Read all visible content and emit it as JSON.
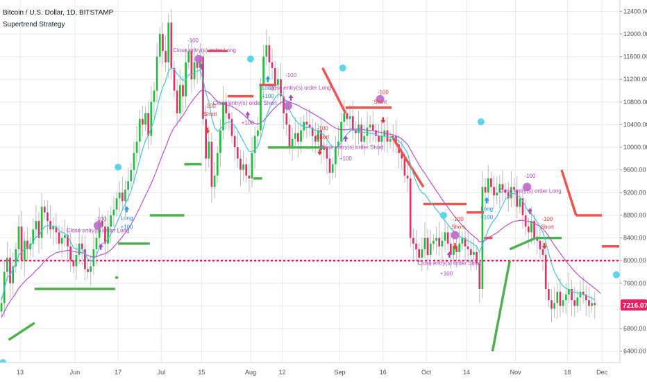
{
  "header": {
    "title": "Bitcoin / U.S. Dollar, 1D, BITSTAMP",
    "subtitle": "Supertrend Strategy"
  },
  "price_tag": {
    "value": "7216.07",
    "color": "#e91e63"
  },
  "colors": {
    "up": "#1fbe3d",
    "down": "#e0316b",
    "supertrend_up": "#4caf50",
    "supertrend_down": "#ef5350",
    "ma_fast": "#45c3d8",
    "ma_slow": "#b453c8",
    "baseline": "#d81b60",
    "grid": "#e8e8e8",
    "marker_cyan": "#4dd0e1",
    "marker_purple": "#ba68c8",
    "long_arrow": "#2196f3",
    "short_arrow": "#e53935",
    "ann_purple": "#ab47bc",
    "ann_red": "#e53935",
    "ann_blue": "#1e88e5"
  },
  "chart_data": {
    "type": "line",
    "title": "Bitcoin / U.S. Dollar, 1D, BITSTAMP",
    "subtitle": "Supertrend Strategy",
    "ylim": [
      6200,
      12600
    ],
    "yticks": [
      "12400.00",
      "12000.00",
      "11600.00",
      "11200.00",
      "10800.00",
      "10400.00",
      "10000.00",
      "9600.00",
      "9200.00",
      "8800.00",
      "8400.00",
      "8000.00",
      "7600.00",
      "7200.00",
      "6800.00",
      "6400.00"
    ],
    "ytick_values": [
      12400,
      12000,
      11600,
      11200,
      10800,
      10400,
      10000,
      9600,
      9200,
      8800,
      8400,
      8000,
      7600,
      7200,
      6800,
      6400
    ],
    "xlim": [
      0,
      215
    ],
    "xticks": [
      {
        "label": "13",
        "x": 7
      },
      {
        "label": "Jun",
        "x": 26
      },
      {
        "label": "17",
        "x": 41
      },
      {
        "label": "Jul",
        "x": 56
      },
      {
        "label": "15",
        "x": 70
      },
      {
        "label": "Aug",
        "x": 87
      },
      {
        "label": "12",
        "x": 98
      },
      {
        "label": "Sep",
        "x": 118
      },
      {
        "label": "16",
        "x": 133
      },
      {
        "label": "Oct",
        "x": 148
      },
      {
        "label": "14",
        "x": 162
      },
      {
        "label": "Nov",
        "x": 179
      },
      {
        "label": "18",
        "x": 197
      },
      {
        "label": "Dec",
        "x": 209
      }
    ],
    "baseline_value": 8000,
    "close": [
      7250,
      7800,
      8050,
      7600,
      7900,
      8200,
      8600,
      8000,
      8350,
      8200,
      8300,
      8550,
      8700,
      8400,
      8950,
      8850,
      8700,
      8550,
      8600,
      8500,
      8300,
      8400,
      8450,
      8250,
      8000,
      7900,
      8100,
      8300,
      8200,
      7850,
      7800,
      7900,
      8200,
      8400,
      8700,
      8600,
      8300,
      8600,
      8800,
      8900,
      9100,
      9200,
      9050,
      9250,
      9400,
      9600,
      9900,
      10100,
      10500,
      10400,
      10600,
      10200,
      10800,
      11000,
      11600,
      12000,
      11700,
      11500,
      12200,
      11400,
      11000,
      10600,
      11100,
      10900,
      11500,
      11700,
      11200,
      11500,
      11400,
      11600,
      10500,
      9800,
      10100,
      9300,
      9500,
      9900,
      10300,
      10800,
      10600,
      10500,
      10200,
      10000,
      9800,
      9600,
      9700,
      9500,
      9450,
      9900,
      10200,
      10300,
      11100,
      11600,
      11800,
      11500,
      11400,
      11100,
      11200,
      10900,
      10600,
      10400,
      10000,
      10150,
      10250,
      10100,
      10300,
      10450,
      10400,
      10350,
      10200,
      10100,
      10300,
      9950,
      10000,
      9800,
      9550,
      9700,
      10000,
      10100,
      10450,
      10600,
      10500,
      10550,
      10300,
      10250,
      10400,
      10100,
      10200,
      10350,
      10400,
      10300,
      10200,
      10100,
      10200,
      10300,
      10100,
      10150,
      10200,
      10050,
      9900,
      9800,
      9500,
      9450,
      8400,
      8300,
      8200,
      8050,
      8200,
      8400,
      8100,
      8300,
      8350,
      8400,
      8250,
      8350,
      8500,
      8300,
      8100,
      8250,
      8150,
      8300,
      8400,
      8250,
      8200,
      8100,
      8150,
      7950,
      7500,
      9300,
      9200,
      9450,
      9300,
      9150,
      9200,
      9350,
      9250,
      9200,
      9100,
      9300,
      9250,
      8950,
      9100,
      8800,
      8600,
      8500,
      8700,
      8400,
      8350,
      8200,
      8100,
      7500,
      7300,
      7150,
      7250,
      7450,
      7200,
      7300,
      7400,
      7500,
      7300,
      7200,
      7350,
      7450,
      7400,
      7300,
      7200,
      7250,
      7216
    ],
    "ma_fast": [
      7300,
      7500,
      7700,
      7750,
      7850,
      7950,
      8100,
      8150,
      8200,
      8220,
      8250,
      8330,
      8420,
      8430,
      8530,
      8600,
      8620,
      8610,
      8610,
      8590,
      8530,
      8500,
      8480,
      8430,
      8330,
      8230,
      8200,
      8210,
      8210,
      8120,
      8030,
      7990,
      8020,
      8100,
      8230,
      8300,
      8320,
      8380,
      8470,
      8550,
      8660,
      8780,
      8890,
      9000,
      9100,
      9230,
      9400,
      9580,
      9780,
      9960,
      10120,
      10210,
      10340,
      10480,
      10680,
      10900,
      11060,
      11170,
      11350,
      11400,
      11380,
      11290,
      11240,
      11180,
      11200,
      11280,
      11280,
      11320,
      11340,
      11370,
      11200,
      10960,
      10800,
      10530,
      10350,
      10280,
      10330,
      10380,
      10430,
      10450,
      10430,
      10380,
      10300,
      10200,
      10110,
      10010,
      9930,
      9920,
      9960,
      10010,
      10160,
      10350,
      10550,
      10680,
      10790,
      10870,
      10930,
      10950,
      10890,
      10800,
      10660,
      10560,
      10490,
      10430,
      10390,
      10360,
      10350,
      10350,
      10330,
      10300,
      10300,
      10250,
      10220,
      10150,
      10060,
      10010,
      10010,
      10020,
      10080,
      10170,
      10230,
      10290,
      10300,
      10300,
      10310,
      10280,
      10260,
      10250,
      10250,
      10240,
      10230,
      10200,
      10200,
      10190,
      10180,
      10180,
      10170,
      10150,
      10110,
      10060,
      9980,
      9900,
      9700,
      9530,
      9390,
      9270,
      9200,
      9170,
      9100,
      9020,
      8970,
      8900,
      8840,
      8770,
      8700,
      8640,
      8570,
      8520,
      8470,
      8430,
      8400,
      8380,
      8350,
      8320,
      8290,
      8250,
      8150,
      8280,
      8400,
      8540,
      8640,
      8710,
      8780,
      8880,
      8980,
      9080,
      9130,
      9170,
      9190,
      9150,
      9120,
      9050,
      8960,
      8860,
      8830,
      8760,
      8680,
      8590,
      8500,
      8320,
      8130,
      7950,
      7800,
      7710,
      7620,
      7550,
      7510,
      7490,
      7460,
      7440,
      7430,
      7420,
      7400,
      7380,
      7360,
      7340,
      7300
    ],
    "ma_slow": [
      7000,
      7100,
      7200,
      7280,
      7350,
      7430,
      7510,
      7570,
      7630,
      7680,
      7720,
      7770,
      7830,
      7870,
      7930,
      7990,
      8040,
      8080,
      8110,
      8140,
      8150,
      8160,
      8170,
      8180,
      8180,
      8160,
      8150,
      8150,
      8140,
      8120,
      8090,
      8070,
      8060,
      8070,
      8090,
      8110,
      8120,
      8150,
      8190,
      8240,
      8300,
      8360,
      8420,
      8490,
      8560,
      8640,
      8730,
      8830,
      8930,
      9040,
      9150,
      9250,
      9360,
      9480,
      9610,
      9750,
      9880,
      10000,
      10140,
      10260,
      10350,
      10420,
      10490,
      10560,
      10640,
      10730,
      10800,
      10870,
      10930,
      10990,
      11010,
      10990,
      10970,
      10920,
      10860,
      10810,
      10780,
      10760,
      10750,
      10740,
      10720,
      10690,
      10660,
      10620,
      10580,
      10530,
      10480,
      10440,
      10420,
      10410,
      10430,
      10470,
      10530,
      10590,
      10650,
      10700,
      10750,
      10790,
      10810,
      10820,
      10800,
      10780,
      10760,
      10740,
      10710,
      10680,
      10660,
      10630,
      10600,
      10570,
      10540,
      10510,
      10480,
      10440,
      10400,
      10370,
      10340,
      10320,
      10310,
      10310,
      10310,
      10320,
      10320,
      10320,
      10320,
      10320,
      10310,
      10300,
      10300,
      10290,
      10280,
      10270,
      10260,
      10250,
      10240,
      10230,
      10220,
      10200,
      10180,
      10150,
      10100,
      10050,
      9960,
      9870,
      9780,
      9690,
      9610,
      9540,
      9460,
      9380,
      9310,
      9230,
      9160,
      9080,
      9010,
      8940,
      8870,
      8800,
      8740,
      8680,
      8620,
      8570,
      8520,
      8470,
      8430,
      8390,
      8330,
      8340,
      8360,
      8400,
      8430,
      8460,
      8490,
      8530,
      8570,
      8610,
      8640,
      8670,
      8690,
      8700,
      8710,
      8710,
      8700,
      8690,
      8680,
      8660,
      8630,
      8600,
      8560,
      8500,
      8430,
      8350,
      8270,
      8200,
      8130,
      8060,
      7990,
      7930,
      7870,
      7810,
      7760,
      7710,
      7670,
      7630,
      7590,
      7550,
      7510,
      7470,
      7420
    ],
    "supertrend": [
      {
        "x": [
          3,
          12
        ],
        "y": [
          6600,
          6900
        ],
        "dir": "up"
      },
      {
        "x": [
          12,
          40
        ],
        "y": [
          7500,
          7500
        ],
        "dir": "up"
      },
      {
        "x": [
          40,
          41
        ],
        "y": [
          7700,
          7700
        ],
        "dir": "up"
      },
      {
        "x": [
          41,
          52
        ],
        "y": [
          8300,
          8300
        ],
        "dir": "up"
      },
      {
        "x": [
          52,
          64
        ],
        "y": [
          8800,
          8800
        ],
        "dir": "up"
      },
      {
        "x": [
          64,
          70
        ],
        "y": [
          9700,
          9700
        ],
        "dir": "up"
      },
      {
        "x": [
          72,
          79
        ],
        "y": [
          11700,
          11700
        ],
        "dir": "down"
      },
      {
        "x": [
          79,
          88
        ],
        "y": [
          10900,
          10900
        ],
        "dir": "down"
      },
      {
        "x": [
          90,
          96
        ],
        "y": [
          11100,
          11100
        ],
        "dir": "down"
      },
      {
        "x": [
          88,
          91
        ],
        "y": [
          9450,
          9450
        ],
        "dir": "up"
      },
      {
        "x": [
          93,
          113
        ],
        "y": [
          10000,
          10000
        ],
        "dir": "up"
      },
      {
        "x": [
          112,
          120
        ],
        "y": [
          11400,
          10600
        ],
        "dir": "down"
      },
      {
        "x": [
          120,
          136
        ],
        "y": [
          10700,
          10700
        ],
        "dir": "down"
      },
      {
        "x": [
          136,
          147
        ],
        "y": [
          10200,
          9300
        ],
        "dir": "down"
      },
      {
        "x": [
          147,
          162
        ],
        "y": [
          9000,
          9000
        ],
        "dir": "down"
      },
      {
        "x": [
          162,
          168
        ],
        "y": [
          8850,
          8850
        ],
        "dir": "down"
      },
      {
        "x": [
          168,
          171
        ],
        "y": [
          8400,
          8400
        ],
        "dir": "down"
      },
      {
        "x": [
          171,
          177
        ],
        "y": [
          6400,
          8000
        ],
        "dir": "up"
      },
      {
        "x": [
          177,
          186
        ],
        "y": [
          8200,
          8400
        ],
        "dir": "up"
      },
      {
        "x": [
          186,
          195
        ],
        "y": [
          8400,
          8400
        ],
        "dir": "up"
      },
      {
        "x": [
          195,
          200
        ],
        "y": [
          9600,
          8800
        ],
        "dir": "down"
      },
      {
        "x": [
          200,
          209
        ],
        "y": [
          8800,
          8800
        ],
        "dir": "down"
      },
      {
        "x": [
          209,
          215
        ],
        "y": [
          8250,
          8250
        ],
        "dir": "down"
      }
    ],
    "annotations": [
      {
        "text": "-100",
        "x": 35,
        "y": 8700,
        "color": "ann_purple"
      },
      {
        "text": "Close entry(s) order Long",
        "x": 34,
        "y": 8500,
        "color": "ann_purple"
      },
      {
        "text": "Long",
        "x": 44,
        "y": 8720,
        "color": "ann_blue"
      },
      {
        "text": "+100",
        "x": 44,
        "y": 8560,
        "color": "ann_blue"
      },
      {
        "text": "-100",
        "x": 67,
        "y": 11850,
        "color": "ann_purple"
      },
      {
        "text": "Close entry(s) order Long",
        "x": 71,
        "y": 11680,
        "color": "ann_purple"
      },
      {
        "text": "-100",
        "x": 73,
        "y": 10700,
        "color": "ann_red"
      },
      {
        "text": "Short",
        "x": 73,
        "y": 10550,
        "color": "ann_red"
      },
      {
        "text": "Close entry(s) order Short",
        "x": 85,
        "y": 10750,
        "color": "ann_purple"
      },
      {
        "text": "+100",
        "x": 86,
        "y": 10400,
        "color": "ann_purple"
      },
      {
        "text": "Long",
        "x": 93,
        "y": 11020,
        "color": "ann_blue"
      },
      {
        "text": "+100",
        "x": 93,
        "y": 10870,
        "color": "ann_blue"
      },
      {
        "text": "-100",
        "x": 101,
        "y": 11240,
        "color": "ann_purple"
      },
      {
        "text": "Close entry(s) order Long",
        "x": 104,
        "y": 11020,
        "color": "ann_purple"
      },
      {
        "text": "-100",
        "x": 112,
        "y": 10300,
        "color": "ann_red"
      },
      {
        "text": "Short",
        "x": 112,
        "y": 10150,
        "color": "ann_red"
      },
      {
        "text": "Close entry(s) order Short",
        "x": 122,
        "y": 9970,
        "color": "ann_purple"
      },
      {
        "text": "+100",
        "x": 120,
        "y": 9770,
        "color": "ann_purple"
      },
      {
        "text": "-100",
        "x": 133,
        "y": 10940,
        "color": "ann_red"
      },
      {
        "text": "Short",
        "x": 132,
        "y": 10770,
        "color": "ann_red"
      },
      {
        "text": "-100",
        "x": 159,
        "y": 8700,
        "color": "ann_red"
      },
      {
        "text": "Short",
        "x": 159,
        "y": 8560,
        "color": "ann_red"
      },
      {
        "text": "Close entry(s) order Short",
        "x": 156,
        "y": 7920,
        "color": "ann_purple"
      },
      {
        "text": "+100",
        "x": 155,
        "y": 7740,
        "color": "ann_purple"
      },
      {
        "text": "Long",
        "x": 169,
        "y": 8880,
        "color": "ann_blue"
      },
      {
        "text": "+100",
        "x": 169,
        "y": 8730,
        "color": "ann_blue"
      },
      {
        "text": "-100",
        "x": 184,
        "y": 9460,
        "color": "ann_purple"
      },
      {
        "text": "Close entry(s) order Long",
        "x": 184,
        "y": 9200,
        "color": "ann_purple"
      },
      {
        "text": "-100",
        "x": 190,
        "y": 8700,
        "color": "ann_red"
      },
      {
        "text": "Short",
        "x": 190,
        "y": 8560,
        "color": "ann_red"
      }
    ],
    "markers": [
      {
        "x": 41,
        "y": 9650,
        "color": "marker_cyan",
        "r": 5
      },
      {
        "x": 87,
        "y": 11560,
        "color": "marker_cyan",
        "r": 5
      },
      {
        "x": 119,
        "y": 11400,
        "color": "marker_cyan",
        "r": 5
      },
      {
        "x": 167,
        "y": 10450,
        "color": "marker_cyan",
        "r": 5
      },
      {
        "x": 154,
        "y": 8800,
        "color": "marker_cyan",
        "r": 5
      },
      {
        "x": 214,
        "y": 7750,
        "color": "marker_cyan",
        "r": 5
      },
      {
        "x": 1,
        "y": 6200,
        "color": "marker_cyan",
        "r": 5
      },
      {
        "x": 34,
        "y": 8620,
        "color": "marker_purple",
        "r": 6
      },
      {
        "x": 69,
        "y": 11560,
        "color": "marker_purple",
        "r": 6
      },
      {
        "x": 100,
        "y": 10730,
        "color": "marker_purple",
        "r": 6
      },
      {
        "x": 132,
        "y": 10850,
        "color": "marker_purple",
        "r": 6
      },
      {
        "x": 158,
        "y": 8450,
        "color": "marker_purple",
        "r": 6
      },
      {
        "x": 183,
        "y": 9300,
        "color": "marker_purple",
        "r": 6
      }
    ],
    "arrows": [
      {
        "x": 35,
        "y": 8240,
        "dir": "up",
        "color": "ann_purple"
      },
      {
        "x": 44,
        "y": 8900,
        "dir": "up",
        "color": "long_arrow"
      },
      {
        "x": 70,
        "y": 11420,
        "dir": "up",
        "color": "ann_purple"
      },
      {
        "x": 72,
        "y": 10300,
        "dir": "down",
        "color": "short_arrow"
      },
      {
        "x": 86,
        "y": 10570,
        "dir": "up",
        "color": "ann_purple"
      },
      {
        "x": 93,
        "y": 11200,
        "dir": "up",
        "color": "long_arrow"
      },
      {
        "x": 101,
        "y": 10870,
        "dir": "up",
        "color": "ann_purple"
      },
      {
        "x": 111,
        "y": 9920,
        "dir": "down",
        "color": "short_arrow"
      },
      {
        "x": 120,
        "y": 10150,
        "dir": "up",
        "color": "ann_purple"
      },
      {
        "x": 133,
        "y": 10480,
        "dir": "down",
        "color": "short_arrow"
      },
      {
        "x": 158,
        "y": 8260,
        "dir": "down",
        "color": "short_arrow"
      },
      {
        "x": 156,
        "y": 8100,
        "dir": "up",
        "color": "ann_purple"
      },
      {
        "x": 169,
        "y": 9060,
        "dir": "up",
        "color": "long_arrow"
      },
      {
        "x": 184,
        "y": 8870,
        "dir": "up",
        "color": "ann_purple"
      },
      {
        "x": 189,
        "y": 8260,
        "dir": "down",
        "color": "short_arrow"
      }
    ]
  }
}
